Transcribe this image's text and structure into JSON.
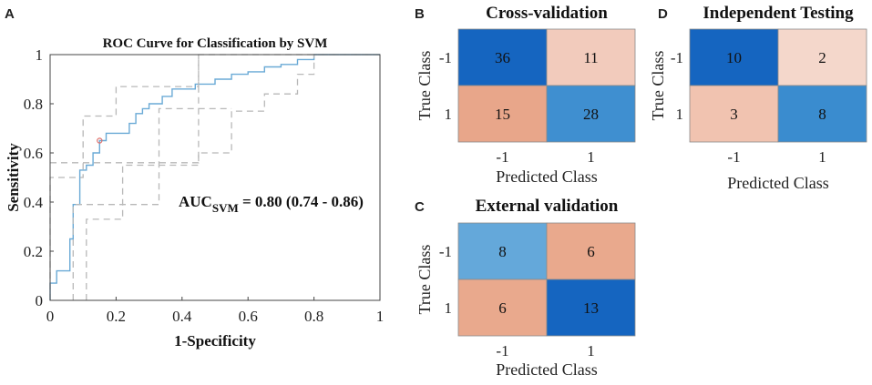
{
  "panel_labels": {
    "a": "A",
    "b": "B",
    "c": "C",
    "d": "D"
  },
  "chart_data": [
    {
      "type": "line",
      "title": "ROC Curve for Classification by SVM",
      "xlabel": "1-Specificity",
      "ylabel": "Sensitivity",
      "xlim": [
        0,
        1
      ],
      "ylim": [
        0,
        1
      ],
      "xticks": [
        "0",
        "0.2",
        "0.4",
        "0.6",
        "0.8",
        "1"
      ],
      "yticks": [
        "0",
        "0.2",
        "0.4",
        "0.6",
        "0.8",
        "1"
      ],
      "annotation": {
        "prefix": "AUC",
        "subscript": "SVM",
        "text": " = 0.80 (0.74 - 0.86)"
      },
      "colors": {
        "roc": "#6aaad6",
        "bounds": "#b8b8b8",
        "marker": "#e0706a",
        "axis": "#444444"
      },
      "series": [
        {
          "name": "ROC",
          "x": [
            0,
            0,
            0.02,
            0.02,
            0.06,
            0.06,
            0.07,
            0.07,
            0.09,
            0.09,
            0.11,
            0.11,
            0.13,
            0.13,
            0.15,
            0.15,
            0.17,
            0.17,
            0.21,
            0.21,
            0.24,
            0.24,
            0.26,
            0.26,
            0.28,
            0.28,
            0.3,
            0.3,
            0.34,
            0.34,
            0.37,
            0.37,
            0.4,
            0.4,
            0.44,
            0.44,
            0.5,
            0.5,
            0.55,
            0.55,
            0.6,
            0.6,
            0.65,
            0.65,
            0.7,
            0.7,
            0.75,
            0.75,
            0.8,
            0.8,
            1
          ],
          "y": [
            0,
            0.07,
            0.07,
            0.12,
            0.12,
            0.25,
            0.25,
            0.39,
            0.39,
            0.53,
            0.53,
            0.55,
            0.55,
            0.6,
            0.6,
            0.65,
            0.65,
            0.68,
            0.68,
            0.68,
            0.68,
            0.72,
            0.72,
            0.76,
            0.76,
            0.78,
            0.78,
            0.8,
            0.8,
            0.83,
            0.83,
            0.86,
            0.86,
            0.86,
            0.86,
            0.88,
            0.88,
            0.9,
            0.9,
            0.92,
            0.92,
            0.93,
            0.93,
            0.95,
            0.95,
            0.96,
            0.96,
            0.98,
            0.98,
            1,
            1
          ]
        },
        {
          "name": "Lower bound",
          "x": [
            0.11,
            0.11,
            0.22,
            0.22,
            0.45,
            0.45,
            0.55,
            0.55,
            0.65,
            0.65,
            0.75,
            0.75,
            0.8,
            0.8,
            1
          ],
          "y": [
            0,
            0.33,
            0.33,
            0.55,
            0.55,
            0.6,
            0.6,
            0.77,
            0.77,
            0.84,
            0.84,
            0.92,
            0.92,
            1,
            1
          ]
        },
        {
          "name": "Upper bound",
          "x": [
            0,
            0,
            0.1,
            0.1,
            0.2,
            0.2,
            0.45,
            0.45,
            0.55,
            0.55,
            0.65,
            0.65,
            1
          ],
          "y": [
            0,
            0.5,
            0.5,
            0.75,
            0.75,
            0.87,
            0.87,
            1,
            1,
            1,
            1,
            1,
            1
          ]
        },
        {
          "name": "Dashed guide 1",
          "x": [
            0,
            0.45,
            0.45
          ],
          "y": [
            0.56,
            0.56,
            1
          ]
        },
        {
          "name": "Dashed guide 2",
          "x": [
            0.07,
            0.07,
            0.33,
            0.33,
            0.55
          ],
          "y": [
            0,
            0.39,
            0.39,
            0.78,
            0.78
          ]
        }
      ],
      "operating_point": {
        "x": 0.15,
        "y": 0.65
      }
    },
    {
      "type": "heatmap",
      "title": "Cross-validation",
      "xlabel": "Predicted Class",
      "ylabel": "True Class",
      "row_labels": [
        "-1",
        "1"
      ],
      "col_labels": [
        "-1",
        "1"
      ],
      "values": [
        [
          36,
          11
        ],
        [
          15,
          28
        ]
      ],
      "cell_colors": [
        [
          "#1565c0",
          "#f2cbbc"
        ],
        [
          "#e8a68a",
          "#3f8fd0"
        ]
      ]
    },
    {
      "type": "heatmap",
      "title": "External validation",
      "xlabel": "Predicted Class",
      "ylabel": "True Class",
      "row_labels": [
        "-1",
        "1"
      ],
      "col_labels": [
        "-1",
        "1"
      ],
      "values": [
        [
          8,
          6
        ],
        [
          6,
          13
        ]
      ],
      "cell_colors": [
        [
          "#64a8da",
          "#e9a98d"
        ],
        [
          "#e9a98d",
          "#1565c0"
        ]
      ]
    },
    {
      "type": "heatmap",
      "title": "Independent Testing",
      "xlabel": "Predicted Class",
      "ylabel": "True Class",
      "row_labels": [
        "-1",
        "1"
      ],
      "col_labels": [
        "-1",
        "1"
      ],
      "values": [
        [
          10,
          2
        ],
        [
          3,
          8
        ]
      ],
      "cell_colors": [
        [
          "#1565c0",
          "#f4d7cb"
        ],
        [
          "#f1c3b0",
          "#3a8ccf"
        ]
      ]
    }
  ]
}
